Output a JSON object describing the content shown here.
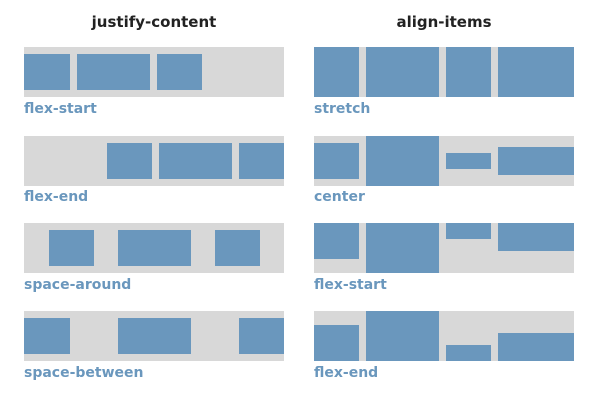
{
  "columns": {
    "left": {
      "title": "justify-content"
    },
    "right": {
      "title": "align-items"
    }
  },
  "justify": {
    "flex_start": {
      "caption": "flex-start"
    },
    "flex_end": {
      "caption": "flex-end"
    },
    "space_around": {
      "caption": "space-around"
    },
    "space_between": {
      "caption": "space-between"
    }
  },
  "align": {
    "stretch": {
      "caption": "stretch"
    },
    "center": {
      "caption": "center"
    },
    "flex_start": {
      "caption": "flex-start"
    },
    "flex_end": {
      "caption": "flex-end"
    }
  },
  "colors": {
    "track": "#d8d8d8",
    "item": "#6a97bd",
    "caption": "#6a97bd"
  }
}
